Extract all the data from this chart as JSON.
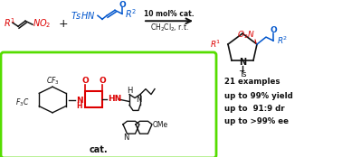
{
  "bg_color": "#ffffff",
  "green_box_color": "#55dd00",
  "red_color": "#dd0000",
  "blue_color": "#0055cc",
  "black_color": "#111111",
  "results_text": [
    "21 examples",
    "up to 99% yield",
    "up to  91:9 dr",
    "up to >99% ee"
  ],
  "arrow_label_top": "10 mol% cat.",
  "arrow_label_bot": "CH$_2$Cl$_2$, r.t.",
  "cat_label": "cat.",
  "figsize": [
    3.78,
    1.74
  ],
  "dpi": 100
}
